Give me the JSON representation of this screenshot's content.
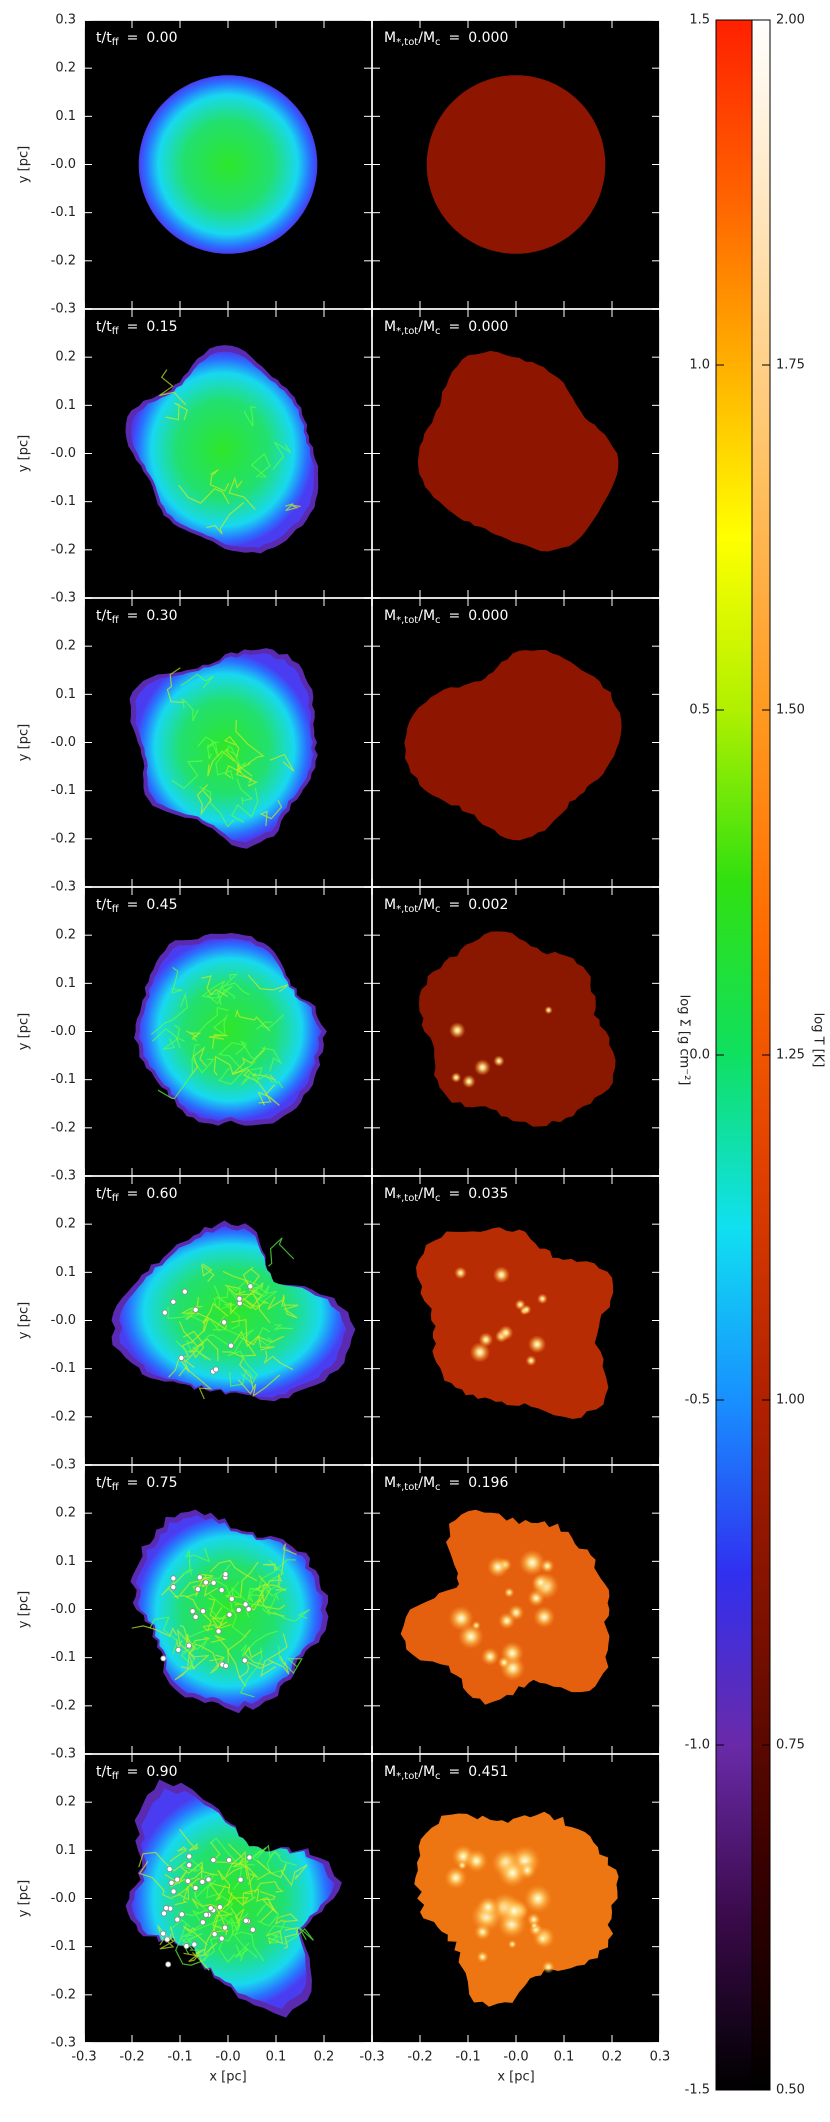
{
  "chart_data": {
    "type": "image-grid",
    "xlabel": "x [pc]",
    "ylabel": "y [pc]",
    "xlim": [
      -0.3,
      0.3
    ],
    "ylim": [
      -0.3,
      0.3
    ],
    "xticks": [
      -0.3,
      -0.2,
      -0.1,
      {
        "value": 0,
        "label": "-0.0"
      },
      0.1,
      0.2,
      0.3
    ],
    "yticks": [
      -0.3,
      -0.2,
      -0.1,
      {
        "value": 0,
        "label": "-0.0"
      },
      0.1,
      0.2,
      0.3
    ],
    "time_label": {
      "text": "t/t",
      "sub": "ff",
      "sep": "="
    },
    "mass_label": {
      "text": "M",
      "sub": "*,tot",
      "text2": "/M",
      "sub2": "c",
      "sep": "="
    },
    "times": [
      "0.00",
      "0.15",
      "0.30",
      "0.45",
      "0.60",
      "0.75",
      "0.90"
    ],
    "mass_fractions": [
      "0.000",
      "0.000",
      "0.000",
      "0.002",
      "0.035",
      "0.196",
      "0.451"
    ],
    "colorbars": [
      {
        "label": "log Σ [g cm⁻²]",
        "lim": [
          -1.5,
          1.5
        ],
        "ticks": [
          -1.5,
          {
            "value": -1,
            "label": "-1.0"
          },
          -0.5,
          {
            "value": 0,
            "label": "0.0"
          },
          0.5,
          {
            "value": 1,
            "label": "1.0"
          },
          1.5
        ],
        "colors": [
          "#000000",
          "#3a0a4a",
          "#6a2aa8",
          "#3030f0",
          "#1890ff",
          "#10e0f0",
          "#10e060",
          "#30e010",
          "#b0f000",
          "#ffff00",
          "#ffb000",
          "#ff6000",
          "#ff2000"
        ]
      },
      {
        "label": "log T [K]",
        "lim": [
          0.5,
          2
        ],
        "ticks": [
          {
            "value": 0.5,
            "label": "0.50"
          },
          {
            "value": 0.75,
            "label": "0.75"
          },
          {
            "value": 1,
            "label": "1.00"
          },
          {
            "value": 1.25,
            "label": "1.25"
          },
          {
            "value": 1.5,
            "label": "1.50"
          },
          {
            "value": 1.75,
            "label": "1.75"
          },
          {
            "value": 2,
            "label": "2.00"
          }
        ],
        "colors": [
          "#000000",
          "#3a0000",
          "#7a1000",
          "#b02000",
          "#e04000",
          "#ff6a00",
          "#ff9a20",
          "#ffc060",
          "#ffe0b0",
          "#ffffff"
        ]
      }
    ]
  }
}
